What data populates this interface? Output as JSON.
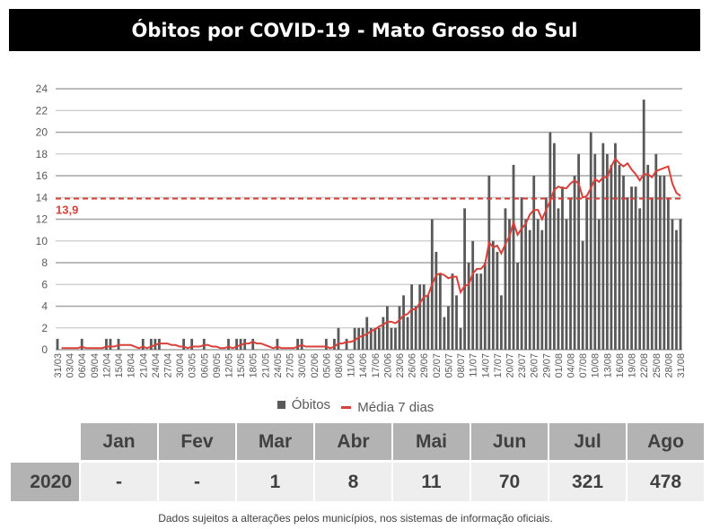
{
  "title": "Óbitos por COVID-19 - Mato Grosso do Sul",
  "chart_data": {
    "type": "bar",
    "ylim": [
      0,
      24
    ],
    "yticks": [
      0,
      2,
      4,
      6,
      8,
      10,
      12,
      14,
      16,
      18,
      20,
      22,
      24
    ],
    "grid": true,
    "legend_placement": "bottom",
    "x_first_date": "31/03",
    "x_tick_labels": [
      "31/03",
      "03/04",
      "06/04",
      "09/04",
      "12/04",
      "15/04",
      "18/04",
      "21/04",
      "24/04",
      "27/04",
      "30/04",
      "03/05",
      "06/05",
      "09/05",
      "12/05",
      "15/05",
      "18/05",
      "21/05",
      "24/05",
      "27/05",
      "30/05",
      "02/06",
      "05/06",
      "08/06",
      "11/06",
      "14/06",
      "17/06",
      "20/06",
      "23/06",
      "26/06",
      "29/06",
      "02/07",
      "05/07",
      "08/07",
      "11/07",
      "14/07",
      "17/07",
      "20/07",
      "23/07",
      "26/07",
      "29/07",
      "01/08",
      "04/08",
      "07/08",
      "10/08",
      "13/08",
      "16/08",
      "19/08",
      "22/08",
      "25/08",
      "28/08",
      "31/08"
    ],
    "x_tick_every_days": 3,
    "series": [
      {
        "name": "Óbitos",
        "type": "bar",
        "color": "#595959",
        "values": [
          1,
          0,
          0,
          0,
          0,
          0,
          1,
          0,
          0,
          0,
          0,
          0,
          1,
          1,
          0,
          1,
          0,
          0,
          0,
          0,
          0,
          1,
          0,
          1,
          1,
          1,
          0,
          0,
          0,
          0,
          0,
          1,
          0,
          1,
          0,
          0,
          1,
          0,
          0,
          0,
          0,
          0,
          1,
          0,
          1,
          1,
          1,
          0,
          1,
          0,
          0,
          0,
          0,
          0,
          1,
          0,
          0,
          0,
          0,
          1,
          1,
          0,
          0,
          0,
          0,
          0,
          1,
          0,
          1,
          2,
          0,
          1,
          0,
          2,
          2,
          2,
          3,
          2,
          2,
          2,
          3,
          4,
          2,
          2,
          4,
          5,
          3,
          6,
          4,
          6,
          6,
          5,
          12,
          9,
          7,
          3,
          4,
          7,
          5,
          2,
          13,
          8,
          10,
          7,
          7,
          8,
          16,
          10,
          9,
          5,
          13,
          12,
          17,
          8,
          14,
          12,
          11,
          16,
          12,
          11,
          14,
          20,
          19,
          13,
          15,
          12,
          14,
          16,
          18,
          10,
          14,
          20,
          18,
          12,
          19,
          18,
          17,
          19,
          17,
          16,
          14,
          15,
          15,
          13,
          23,
          17,
          14,
          18,
          16,
          16,
          14,
          12,
          11,
          12
        ]
      },
      {
        "name": "Média 7 dias",
        "type": "line",
        "color": "#d9403a",
        "window": 7
      }
    ],
    "reference_line": {
      "value": 13.9,
      "label": "13,9",
      "color": "#d9403a",
      "style": "dashed"
    }
  },
  "table": {
    "months": [
      "Jan",
      "Fev",
      "Mar",
      "Abr",
      "Mai",
      "Jun",
      "Jul",
      "Ago"
    ],
    "rows": [
      {
        "year": "2020",
        "values": [
          "-",
          "-",
          "1",
          "8",
          "11",
          "70",
          "321",
          "478"
        ]
      }
    ]
  },
  "footer": "Dados sujeitos a alterações pelos municípios, nos sistemas de informação oficiais."
}
